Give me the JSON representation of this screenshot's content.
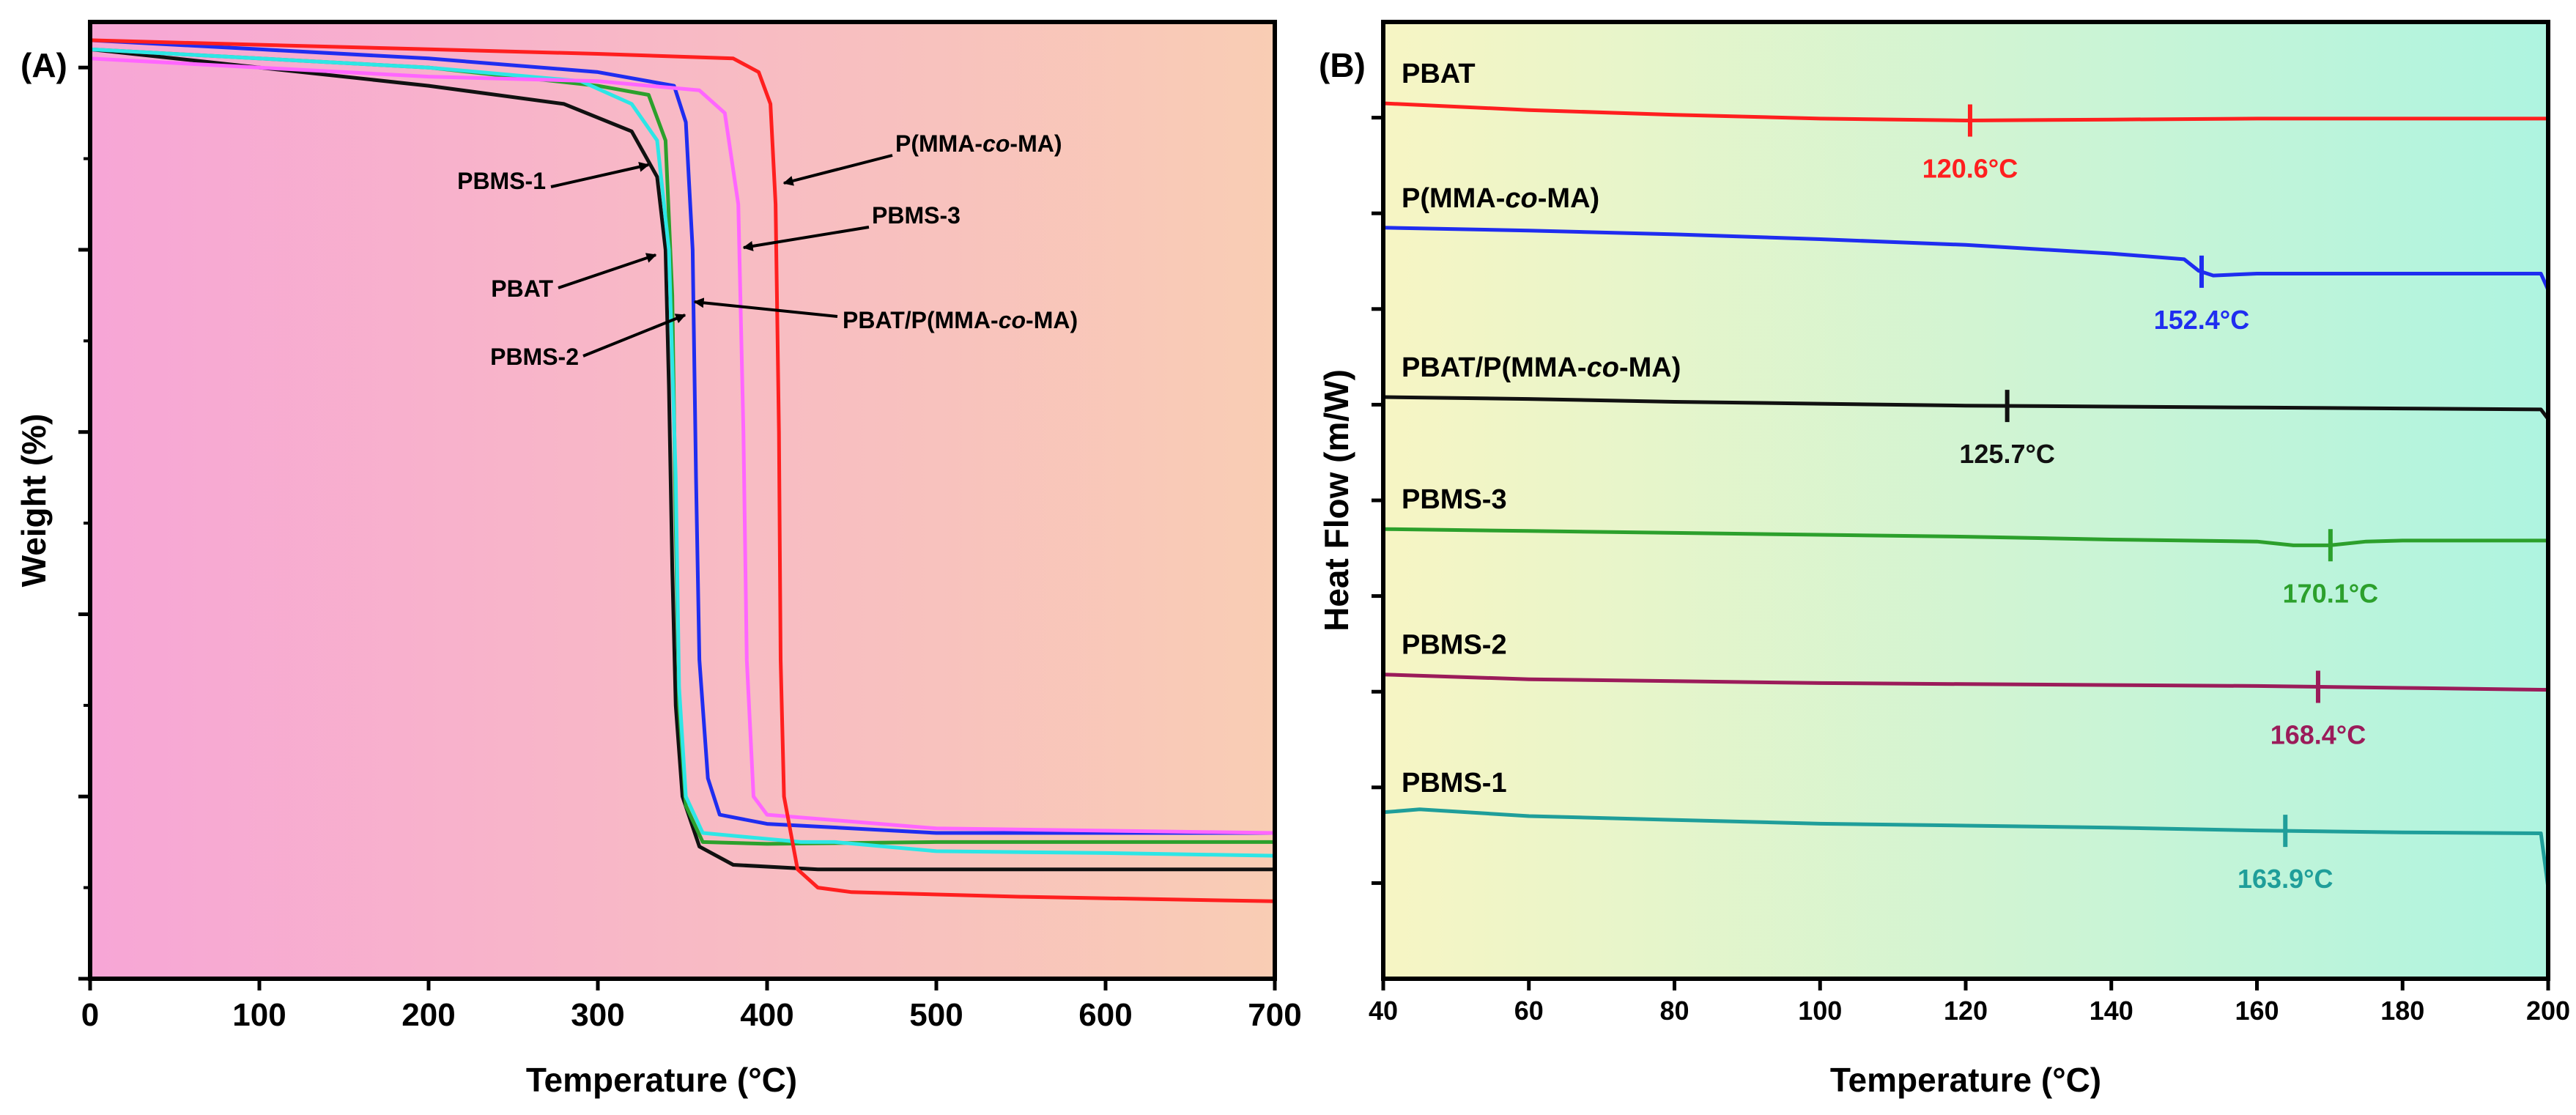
{
  "colors": {
    "red": "#ff1f1f",
    "blue": "#1f2df0",
    "black": "#111111",
    "green": "#2ca02c",
    "maroon": "#9b1b5a",
    "teal": "#1f9e9a",
    "cyan": "#2de6e6",
    "magenta": "#ff66ff",
    "pink_bg": "#f7a6d6",
    "peach_bg": "#f9cdb4",
    "yellow_bg": "#f7f5c4",
    "aqua_bg": "#aef4e0"
  },
  "chart_data": [
    {
      "type": "line",
      "panel_label": "(A)",
      "xlabel": "Temperature (°C)",
      "ylabel": "Weight (%)",
      "xlim": [
        0,
        700
      ],
      "ylim": [
        0,
        105
      ],
      "x_ticks": [
        0,
        100,
        200,
        300,
        400,
        500,
        600,
        700
      ],
      "y_ticks": [
        0,
        20,
        40,
        60,
        80,
        100
      ],
      "show_y_tick_labels": false,
      "series": [
        {
          "name": "PBAT",
          "color": "#111111",
          "points": [
            [
              0,
              102
            ],
            [
              100,
              100
            ],
            [
              200,
              98
            ],
            [
              280,
              96
            ],
            [
              320,
              93
            ],
            [
              335,
              88
            ],
            [
              340,
              80
            ],
            [
              342,
              65
            ],
            [
              344,
              45
            ],
            [
              346,
              30
            ],
            [
              350,
              20
            ],
            [
              360,
              14.5
            ],
            [
              380,
              12.5
            ],
            [
              430,
              12
            ],
            [
              550,
              12
            ],
            [
              700,
              12
            ]
          ]
        },
        {
          "name": "PBMS-1",
          "color": "#2ca02c",
          "points": [
            [
              0,
              102
            ],
            [
              100,
              101
            ],
            [
              200,
              100
            ],
            [
              300,
              98
            ],
            [
              330,
              97
            ],
            [
              340,
              92
            ],
            [
              344,
              75
            ],
            [
              346,
              50
            ],
            [
              348,
              30
            ],
            [
              352,
              19
            ],
            [
              362,
              15
            ],
            [
              400,
              14.8
            ],
            [
              500,
              15
            ],
            [
              700,
              15
            ]
          ]
        },
        {
          "name": "PBMS-2",
          "color": "#2de6e6",
          "points": [
            [
              0,
              102
            ],
            [
              100,
              101
            ],
            [
              200,
              100
            ],
            [
              290,
              98.5
            ],
            [
              320,
              96
            ],
            [
              335,
              92
            ],
            [
              342,
              80
            ],
            [
              346,
              55
            ],
            [
              348,
              32
            ],
            [
              352,
              20
            ],
            [
              362,
              16
            ],
            [
              420,
              15
            ],
            [
              440,
              15
            ],
            [
              500,
              14
            ],
            [
              600,
              13.8
            ],
            [
              700,
              13.5
            ]
          ]
        },
        {
          "name": "PBAT/P(MMA-co-MA)",
          "color": "#1f2df0",
          "points": [
            [
              0,
              103
            ],
            [
              100,
              102
            ],
            [
              200,
              101
            ],
            [
              300,
              99.5
            ],
            [
              345,
              98
            ],
            [
              352,
              94
            ],
            [
              356,
              80
            ],
            [
              358,
              55
            ],
            [
              360,
              35
            ],
            [
              365,
              22
            ],
            [
              372,
              18
            ],
            [
              400,
              17
            ],
            [
              500,
              16
            ],
            [
              700,
              16
            ]
          ]
        },
        {
          "name": "PBMS-3",
          "color": "#ff66ff",
          "points": [
            [
              0,
              101
            ],
            [
              100,
              100
            ],
            [
              200,
              99
            ],
            [
              300,
              98.5
            ],
            [
              360,
              97.5
            ],
            [
              375,
              95
            ],
            [
              383,
              85
            ],
            [
              386,
              60
            ],
            [
              388,
              35
            ],
            [
              392,
              20
            ],
            [
              400,
              18
            ],
            [
              500,
              16.5
            ],
            [
              700,
              16
            ]
          ]
        },
        {
          "name": "P(MMA-co-MA)",
          "color": "#ff1f1f",
          "points": [
            [
              0,
              103
            ],
            [
              100,
              102.5
            ],
            [
              200,
              102
            ],
            [
              300,
              101.5
            ],
            [
              380,
              101
            ],
            [
              395,
              99.5
            ],
            [
              402,
              96
            ],
            [
              405,
              85
            ],
            [
              407,
              60
            ],
            [
              408,
              35
            ],
            [
              410,
              20
            ],
            [
              418,
              12
            ],
            [
              430,
              10
            ],
            [
              450,
              9.5
            ],
            [
              550,
              9
            ],
            [
              700,
              8.5
            ]
          ]
        }
      ],
      "annotations": [
        {
          "text": "P(MMA-co-MA)",
          "target": "P(MMA-co-MA)"
        },
        {
          "text": "PBMS-3",
          "target": "PBMS-3"
        },
        {
          "text": "PBAT/P(MMA-co-MA)",
          "target": "PBAT/P(MMA-co-MA)"
        },
        {
          "text": "PBMS-1",
          "target": "PBMS-1"
        },
        {
          "text": "PBAT",
          "target": "PBAT"
        },
        {
          "text": "PBMS-2",
          "target": "PBMS-2"
        }
      ]
    },
    {
      "type": "line",
      "panel_label": "(B)",
      "xlabel": "Temperature (°C)",
      "ylabel": "Heat Flow (m/W)",
      "xlim": [
        40,
        200
      ],
      "ylim": [
        0,
        10
      ],
      "x_ticks": [
        40,
        60,
        80,
        100,
        120,
        140,
        160,
        180,
        200
      ],
      "show_y_tick_labels": false,
      "series": [
        {
          "name": "PBAT",
          "color": "#ff1f1f",
          "tg": 120.6,
          "tg_label": "120.6°C",
          "points": [
            [
              40,
              9.15
            ],
            [
              60,
              9.08
            ],
            [
              80,
              9.03
            ],
            [
              100,
              8.99
            ],
            [
              120,
              8.97
            ],
            [
              140,
              8.98
            ],
            [
              160,
              8.99
            ],
            [
              180,
              8.99
            ],
            [
              200,
              8.99
            ]
          ]
        },
        {
          "name": "P(MMA-co-MA)",
          "color": "#1f2df0",
          "tg": 152.4,
          "tg_label": "152.4°C",
          "points": [
            [
              40,
              7.85
            ],
            [
              60,
              7.82
            ],
            [
              80,
              7.78
            ],
            [
              100,
              7.73
            ],
            [
              120,
              7.67
            ],
            [
              140,
              7.58
            ],
            [
              150,
              7.52
            ],
            [
              152,
              7.4
            ],
            [
              154,
              7.35
            ],
            [
              160,
              7.37
            ],
            [
              180,
              7.37
            ],
            [
              199,
              7.37
            ],
            [
              200,
              7.2
            ]
          ]
        },
        {
          "name": "PBAT/P(MMA-co-MA)",
          "color": "#111111",
          "tg": 125.7,
          "tg_label": "125.7°C",
          "points": [
            [
              40,
              6.08
            ],
            [
              60,
              6.06
            ],
            [
              80,
              6.03
            ],
            [
              100,
              6.01
            ],
            [
              120,
              5.99
            ],
            [
              140,
              5.98
            ],
            [
              160,
              5.97
            ],
            [
              180,
              5.96
            ],
            [
              199,
              5.95
            ],
            [
              200,
              5.85
            ]
          ]
        },
        {
          "name": "PBMS-3",
          "color": "#2ca02c",
          "tg": 170.1,
          "tg_label": "170.1°C",
          "points": [
            [
              40,
              4.7
            ],
            [
              60,
              4.68
            ],
            [
              80,
              4.66
            ],
            [
              100,
              4.64
            ],
            [
              120,
              4.62
            ],
            [
              140,
              4.59
            ],
            [
              160,
              4.57
            ],
            [
              165,
              4.53
            ],
            [
              170,
              4.53
            ],
            [
              175,
              4.57
            ],
            [
              180,
              4.58
            ],
            [
              200,
              4.58
            ]
          ]
        },
        {
          "name": "PBMS-2",
          "color": "#9b1b5a",
          "tg": 168.4,
          "tg_label": "168.4°C",
          "points": [
            [
              40,
              3.18
            ],
            [
              60,
              3.13
            ],
            [
              80,
              3.11
            ],
            [
              100,
              3.09
            ],
            [
              120,
              3.08
            ],
            [
              140,
              3.07
            ],
            [
              160,
              3.06
            ],
            [
              180,
              3.04
            ],
            [
              200,
              3.02
            ]
          ]
        },
        {
          "name": "PBMS-1",
          "color": "#1f9e9a",
          "tg": 163.9,
          "tg_label": "163.9°C",
          "points": [
            [
              40,
              1.74
            ],
            [
              45,
              1.77
            ],
            [
              60,
              1.7
            ],
            [
              80,
              1.66
            ],
            [
              100,
              1.62
            ],
            [
              120,
              1.6
            ],
            [
              140,
              1.58
            ],
            [
              160,
              1.55
            ],
            [
              180,
              1.53
            ],
            [
              199,
              1.52
            ],
            [
              200,
              0.95
            ]
          ]
        }
      ]
    }
  ]
}
